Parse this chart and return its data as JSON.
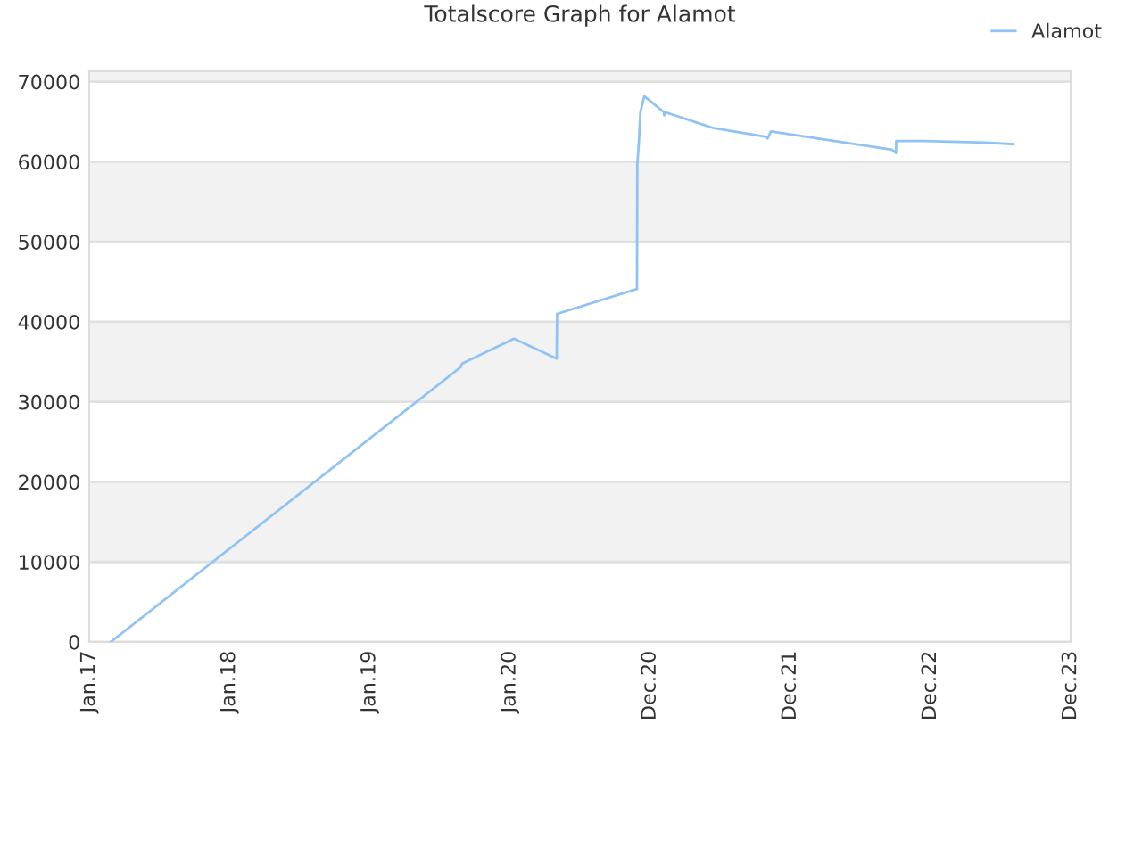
{
  "chart_data": {
    "type": "line",
    "title": "Totalscore Graph for Alamot",
    "xlim": [
      "2017-01-01",
      "2023-12-31"
    ],
    "xticks": [
      {
        "value": "2017-01-01",
        "label": "Jan.17"
      },
      {
        "value": "2018-01-01",
        "label": "Jan.18"
      },
      {
        "value": "2019-01-01",
        "label": "Jan.19"
      },
      {
        "value": "2020-01-01",
        "label": "Jan.20"
      },
      {
        "value": "2020-12-31",
        "label": "Dec.20"
      },
      {
        "value": "2021-12-31",
        "label": "Dec.21"
      },
      {
        "value": "2022-12-31",
        "label": "Dec.22"
      },
      {
        "value": "2023-12-31",
        "label": "Dec.23"
      }
    ],
    "ylim": [
      0,
      71300
    ],
    "yticks": [
      0,
      10000,
      20000,
      30000,
      40000,
      50000,
      60000,
      70000
    ],
    "grid": "y",
    "legend": "top right",
    "marker": "none",
    "line_style": "solid",
    "bands": [
      {
        "axis": "y",
        "from": 10000,
        "to": 20000,
        "color": "#f2f2f2"
      },
      {
        "axis": "y",
        "from": 30000,
        "to": 40000,
        "color": "#f2f2f2"
      },
      {
        "axis": "y",
        "from": 50000,
        "to": 60000,
        "color": "#f2f2f2"
      },
      {
        "axis": "y",
        "from": 70000,
        "to": 71300,
        "color": "#f2f2f2"
      }
    ],
    "series": [
      {
        "name": "Alamot",
        "color": "#90c3f5",
        "x": [
          "2017-02-26",
          "2019-08-25",
          "2019-08-30",
          "2020-01-12",
          "2020-05-02",
          "2020-05-03",
          "2020-11-27",
          "2020-11-28",
          "2020-12-02",
          "2020-12-06",
          "2020-12-16",
          "2021-02-05",
          "2021-02-06",
          "2021-02-08",
          "2021-06-15",
          "2021-11-01",
          "2021-11-02",
          "2021-11-11",
          "2022-09-22",
          "2022-10-02",
          "2022-10-03",
          "2022-12-15",
          "2023-05-22",
          "2023-08-04"
        ],
        "values": [
          0,
          34300,
          34800,
          37900,
          35400,
          41000,
          44100,
          59700,
          62400,
          66200,
          68200,
          66200,
          65800,
          66200,
          64200,
          63100,
          62900,
          63800,
          61500,
          61100,
          62600,
          62600,
          62400,
          62200
        ]
      }
    ]
  }
}
